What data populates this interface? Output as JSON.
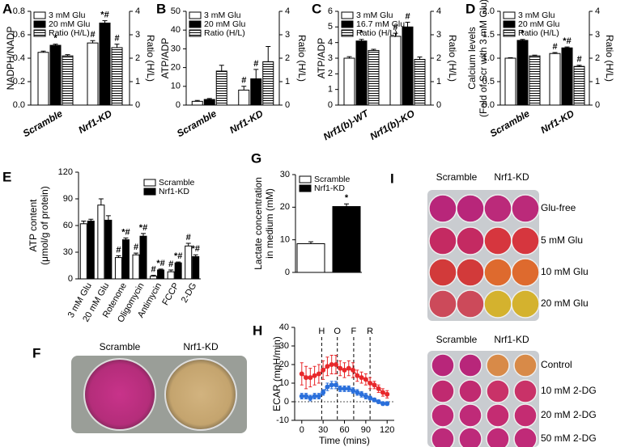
{
  "chart_data": [
    {
      "type": "bar",
      "panel_label": "A",
      "y_label": "NADPH/NADP",
      "y2_label": "Ratio (H/L)",
      "categories": [
        "Scramble",
        "Nrf1-KD"
      ],
      "ylim": [
        0,
        0.8
      ],
      "yticks": [
        {
          "value": 0,
          "label": "0.0"
        },
        0.2,
        0.4,
        0.6,
        0.8
      ],
      "y2lim": [
        0,
        4
      ],
      "y2ticks": [
        0,
        1,
        2,
        3,
        4
      ],
      "series": [
        {
          "name": "3 mM Glu",
          "color": "#ffffff",
          "values": [
            0.45,
            0.53
          ],
          "errors": [
            0.01,
            0.02
          ],
          "annotations": [
            null,
            "#"
          ]
        },
        {
          "name": "20 mM Glu",
          "color": "#000000",
          "values": [
            0.51,
            0.7
          ],
          "errors": [
            0.01,
            0.02
          ],
          "annotations": [
            "*",
            "*#"
          ]
        },
        {
          "name": "Ratio (H/L)",
          "color": "#ffffff",
          "hatch": true,
          "axis": "y2",
          "values": [
            2.1,
            2.45
          ],
          "errors": [
            0.05,
            0.15
          ],
          "annotations": [
            null,
            "#"
          ]
        }
      ]
    },
    {
      "type": "bar",
      "panel_label": "B",
      "y_label": "ATP/ADP",
      "y2_label": "Ratio (H/L)",
      "categories": [
        "Scramble",
        "Nrf1-KD"
      ],
      "ylim": [
        0,
        50
      ],
      "yticks": [
        0,
        10,
        20,
        30,
        40,
        50
      ],
      "y2lim": [
        0,
        4
      ],
      "y2ticks": [
        0,
        1,
        2,
        3,
        4
      ],
      "series": [
        {
          "name": "3 mM Glu",
          "color": "#ffffff",
          "values": [
            2,
            8
          ],
          "errors": [
            0.5,
            2
          ],
          "annotations": [
            null,
            "#"
          ]
        },
        {
          "name": "20 mM Glu",
          "color": "#000000",
          "values": [
            3,
            14
          ],
          "errors": [
            0.5,
            5
          ],
          "annotations": [
            null,
            "#"
          ]
        },
        {
          "name": "Ratio (H/L)",
          "color": "#ffffff",
          "hatch": true,
          "axis": "y2",
          "values": [
            1.45,
            1.85
          ],
          "errors": [
            0.25,
            0.65
          ],
          "annotations": [
            null,
            null
          ]
        }
      ]
    },
    {
      "type": "bar",
      "panel_label": "C",
      "y_label": "ATP/ADP",
      "y2_label": "Ratio (H/L)",
      "categories": [
        "Nrf1(b)-WT",
        "Nrf1(b)-KO"
      ],
      "ylim": [
        0,
        6
      ],
      "yticks": [
        0,
        1,
        2,
        3,
        4,
        5,
        6
      ],
      "y2lim": [
        0,
        4
      ],
      "y2ticks": [
        0,
        1,
        2,
        3,
        4
      ],
      "series": [
        {
          "name": "3 mM Glu",
          "color": "#ffffff",
          "values": [
            3.0,
            4.4
          ],
          "errors": [
            0.1,
            0.2
          ],
          "annotations": [
            null,
            "#"
          ]
        },
        {
          "name": "16.7 mM Glu",
          "color": "#000000",
          "values": [
            4.1,
            5.0
          ],
          "errors": [
            0.1,
            0.3
          ],
          "annotations": [
            "*",
            "#"
          ]
        },
        {
          "name": "Ratio (H/L)",
          "color": "#ffffff",
          "hatch": true,
          "axis": "y2",
          "values": [
            2.33,
            1.95
          ],
          "errors": [
            0.05,
            0.1
          ],
          "annotations": [
            null,
            null
          ]
        }
      ]
    },
    {
      "type": "bar",
      "panel_label": "D",
      "y_label": [
        "Calcium levels",
        "(Fold of Scr with 3 mM Glu)"
      ],
      "y2_label": "Ratio (H/L)",
      "categories": [
        "Scramble",
        "Nrf1-KD"
      ],
      "ylim": [
        0,
        2
      ],
      "yticks": [
        {
          "value": 0,
          "label": "0.0"
        },
        0.5,
        {
          "value": 1,
          "label": "1.0"
        },
        1.5,
        {
          "value": 2,
          "label": "2.0"
        }
      ],
      "y2lim": [
        0,
        4
      ],
      "y2ticks": [
        0,
        1,
        2,
        3,
        4
      ],
      "series": [
        {
          "name": "3 mM Glu",
          "color": "#ffffff",
          "values": [
            1.0,
            1.1
          ],
          "errors": [
            0.01,
            0.02
          ],
          "annotations": [
            null,
            "#"
          ]
        },
        {
          "name": "20 mM Glu",
          "color": "#000000",
          "values": [
            1.38,
            1.22
          ],
          "errors": [
            0.02,
            0.02
          ],
          "annotations": [
            "*",
            "*#"
          ]
        },
        {
          "name": "Ratio (H/L)",
          "color": "#ffffff",
          "hatch": true,
          "axis": "y2",
          "values": [
            2.1,
            1.65
          ],
          "errors": [
            0.03,
            0.05
          ],
          "annotations": [
            null,
            "#"
          ]
        }
      ]
    },
    {
      "type": "bar",
      "panel_label": "E",
      "y_label": [
        "ATP content",
        "(μmol/g of protein)"
      ],
      "categories": [
        "3 mM Glu",
        "20 mM Glu",
        "Rotenone",
        "Oligomycin",
        "Antimycin",
        "FCCP",
        "2-DG"
      ],
      "ylim": [
        0,
        120
      ],
      "yticks": [
        0,
        30,
        60,
        90,
        120
      ],
      "series": [
        {
          "name": "Scramble",
          "color": "#ffffff",
          "values": [
            62,
            83,
            24,
            27,
            3,
            8,
            37
          ],
          "errors": [
            3,
            7,
            2,
            2,
            1,
            2,
            3
          ],
          "annotations": [
            null,
            null,
            "#",
            "#",
            "#",
            "#",
            "#"
          ]
        },
        {
          "name": "Nrf1-KD",
          "color": "#000000",
          "values": [
            65,
            66,
            44,
            48,
            10,
            18,
            25
          ],
          "errors": [
            2,
            5,
            2,
            3,
            1,
            1,
            2
          ],
          "annotations": [
            null,
            null,
            "*#",
            "*#",
            "*#",
            "*#",
            "*#"
          ]
        }
      ]
    },
    {
      "type": "bar",
      "panel_label": "G",
      "y_label": [
        "Lactate concentration",
        "in medium (mM)"
      ],
      "categories": [
        null
      ],
      "ylim": [
        0,
        30
      ],
      "yticks": [
        0,
        10,
        20,
        30
      ],
      "series": [
        {
          "name": "Scramble",
          "color": "#ffffff",
          "values": [
            8.8
          ],
          "errors": [
            0.6
          ],
          "annotations": [
            null
          ]
        },
        {
          "name": "Nrf1-KD",
          "color": "#000000",
          "values": [
            20.2
          ],
          "errors": [
            0.8
          ],
          "annotations": [
            "*"
          ]
        }
      ]
    },
    {
      "type": "line",
      "panel_label": "H",
      "y_label": "ECAR (mpH/min)",
      "x_label": "Time (mins)",
      "x": [
        0,
        6,
        12,
        18,
        24,
        30,
        36,
        42,
        48,
        54,
        60,
        66,
        72,
        78,
        84,
        90,
        96,
        102,
        108,
        114,
        120
      ],
      "xlim": [
        -10,
        130
      ],
      "xticks": [
        0,
        30,
        60,
        90,
        120
      ],
      "ylim": [
        -10,
        40
      ],
      "yticks": [
        -10,
        0,
        10,
        20,
        30,
        40
      ],
      "markers": [
        {
          "x": 28,
          "label": "H"
        },
        {
          "x": 50,
          "label": "O"
        },
        {
          "x": 73,
          "label": "F"
        },
        {
          "x": 96,
          "label": "R"
        }
      ],
      "series": [
        {
          "color": "#e8282b",
          "values": [
            15,
            13,
            13,
            14,
            15,
            17,
            19,
            20,
            20,
            18,
            17,
            18,
            17,
            14,
            13,
            12,
            10,
            9,
            7,
            5,
            4
          ],
          "errors": [
            6,
            6,
            5,
            5,
            5,
            5,
            5,
            5,
            5,
            4,
            4,
            4,
            4,
            3,
            3,
            3,
            3,
            2,
            2,
            2,
            2
          ]
        },
        {
          "color": "#2a6fdb",
          "values": [
            3,
            3,
            2,
            3,
            3,
            5,
            8,
            9,
            9,
            7,
            7,
            7,
            6,
            5,
            4,
            3,
            2,
            1,
            0,
            -1,
            -1
          ],
          "errors": [
            1.5,
            1.5,
            1.5,
            1.5,
            1.5,
            1.5,
            2,
            2,
            2,
            1.5,
            1.5,
            1.5,
            1.5,
            1.5,
            1.5,
            1.5,
            1,
            1,
            1,
            1,
            1
          ]
        }
      ]
    }
  ],
  "images": [
    {
      "panel_label": "F",
      "columns": [
        "Scramble",
        "Nrf1-KD"
      ]
    },
    {
      "panel_label": "I",
      "plates": [
        {
          "columns": [
            "Scramble",
            "Nrf1-KD"
          ],
          "rows": [
            "Glu-free",
            "5 mM Glu",
            "10 mM Glu",
            "20 mM Glu"
          ]
        },
        {
          "columns": [
            "Scramble",
            "Nrf1-KD"
          ],
          "rows": [
            "Control",
            "10 mM 2-DG",
            "20 mM 2-DG",
            "50 mM 2-DG"
          ]
        }
      ]
    }
  ]
}
